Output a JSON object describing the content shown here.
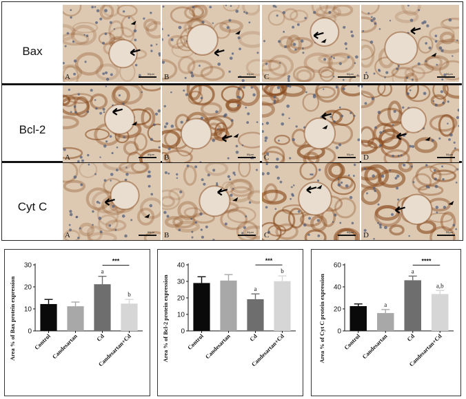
{
  "micrograph_panel": {
    "rows": [
      {
        "label": "Bax",
        "panel_letters": [
          "A",
          "B",
          "C",
          "D"
        ]
      },
      {
        "label": "Bcl-2",
        "panel_letters": [
          "A",
          "B",
          "C",
          "D"
        ]
      },
      {
        "label": "Cyt C",
        "panel_letters": [
          "A",
          "B",
          "C",
          "D"
        ]
      }
    ],
    "scale_text": "50µm",
    "colors": {
      "tissue": "#ddc9b2",
      "stain": "#8a4c1f",
      "nuclei": "#4a5a7a"
    }
  },
  "chart_data": [
    {
      "type": "bar",
      "categories": [
        "Control",
        "Candesartan",
        "Cd",
        "Candesartan+Cd"
      ],
      "values": [
        12.2,
        11.2,
        21.2,
        12.4
      ],
      "errors": [
        2.1,
        1.9,
        3.6,
        1.9
      ],
      "ylabel": "Area % of Bax protein expression",
      "ylim": [
        0,
        30
      ],
      "yticks": [
        0,
        10,
        20,
        30
      ],
      "bar_letters": [
        "",
        "",
        "a",
        "b"
      ],
      "significance": {
        "from": 2,
        "to": 3,
        "label": "***"
      },
      "colors": [
        "#0a0a0a",
        "#a8a8a8",
        "#6e6e6e",
        "#d6d6d6"
      ]
    },
    {
      "type": "bar",
      "categories": [
        "Control",
        "Candesartan",
        "Cd",
        "Candesartan+Cd"
      ],
      "values": [
        29,
        30.5,
        19.2,
        30.1
      ],
      "errors": [
        3.8,
        3.6,
        3.2,
        3.2
      ],
      "ylabel": "Area % of Bcl-2 protein expression",
      "ylim": [
        0,
        40
      ],
      "yticks": [
        0,
        10,
        20,
        30,
        40
      ],
      "bar_letters": [
        "",
        "",
        "a",
        "b"
      ],
      "significance": {
        "from": 2,
        "to": 3,
        "label": "***"
      },
      "colors": [
        "#0a0a0a",
        "#a8a8a8",
        "#6e6e6e",
        "#d6d6d6"
      ]
    },
    {
      "type": "bar",
      "categories": [
        "Control",
        "Candesartan",
        "Cd",
        "Candesartan+Cd"
      ],
      "values": [
        22.5,
        16.2,
        46,
        33.5
      ],
      "errors": [
        2,
        3.2,
        3.8,
        3.2
      ],
      "ylabel": "Area % of Cyt C protein expression",
      "ylim": [
        0,
        60
      ],
      "yticks": [
        0,
        20,
        40,
        60
      ],
      "bar_letters": [
        "",
        "a",
        "a",
        "a,b"
      ],
      "significance": {
        "from": 2,
        "to": 3,
        "label": "****"
      },
      "colors": [
        "#0a0a0a",
        "#a8a8a8",
        "#6e6e6e",
        "#d6d6d6"
      ]
    }
  ]
}
